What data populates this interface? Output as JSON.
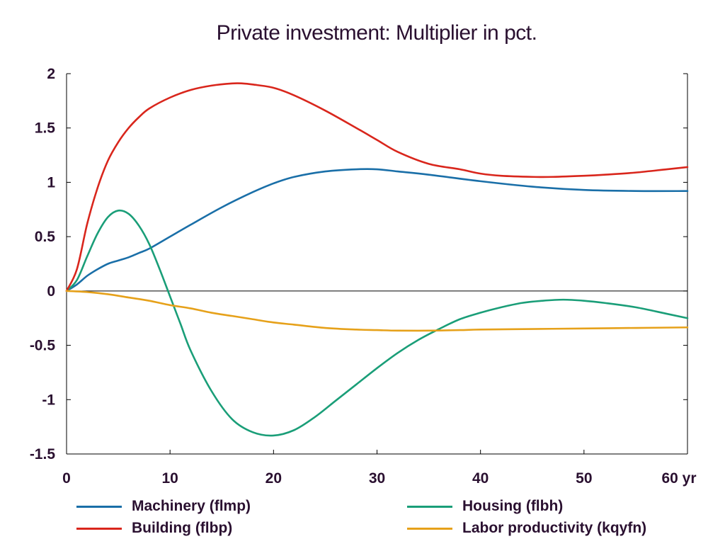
{
  "chart_data": {
    "type": "line",
    "title": "Private investment: Multiplier in pct.",
    "xlabel": "",
    "ylabel": "",
    "x_unit_label": "yr",
    "xlim": [
      0,
      60
    ],
    "ylim": [
      -1.5,
      2
    ],
    "x_ticks": [
      0,
      10,
      20,
      30,
      40,
      50,
      60
    ],
    "x_tick_labels": [
      "0",
      "10",
      "20",
      "30",
      "40",
      "50",
      "60 yr"
    ],
    "y_ticks": [
      -1.5,
      -1,
      -0.5,
      0,
      0.5,
      1,
      1.5,
      2
    ],
    "y_tick_labels": [
      "-1.5",
      "-1",
      "-0.5",
      "0",
      "0.5",
      "1",
      "1.5",
      "2"
    ],
    "grid": false,
    "zero_line": true,
    "legend_position": "bottom",
    "series": [
      {
        "name": "Machinery (flmp)",
        "color": "#1a6fa8",
        "x": [
          0,
          1,
          2,
          3,
          4,
          5,
          6,
          7,
          8,
          10,
          12,
          15,
          18,
          20,
          22,
          25,
          28,
          30,
          32,
          35,
          40,
          45,
          50,
          55,
          60
        ],
        "y": [
          0,
          0.06,
          0.14,
          0.2,
          0.25,
          0.28,
          0.31,
          0.35,
          0.39,
          0.5,
          0.61,
          0.77,
          0.91,
          0.99,
          1.05,
          1.1,
          1.12,
          1.12,
          1.1,
          1.07,
          1.01,
          0.96,
          0.93,
          0.92,
          0.92
        ]
      },
      {
        "name": "Housing (flbh)",
        "color": "#1a9e78",
        "x": [
          0,
          1,
          2,
          3,
          4,
          5,
          6,
          7,
          8,
          9,
          10,
          11,
          12,
          14,
          16,
          18,
          20,
          22,
          24,
          26,
          28,
          30,
          32,
          34,
          36,
          38,
          40,
          42,
          44,
          46,
          48,
          50,
          52,
          55,
          58,
          60
        ],
        "y": [
          0,
          0.1,
          0.32,
          0.53,
          0.68,
          0.74,
          0.71,
          0.6,
          0.43,
          0.2,
          -0.05,
          -0.3,
          -0.55,
          -0.92,
          -1.18,
          -1.3,
          -1.33,
          -1.28,
          -1.16,
          -1.01,
          -0.86,
          -0.71,
          -0.57,
          -0.45,
          -0.35,
          -0.26,
          -0.2,
          -0.15,
          -0.11,
          -0.09,
          -0.08,
          -0.09,
          -0.11,
          -0.15,
          -0.21,
          -0.25
        ]
      },
      {
        "name": "Building (flbp)",
        "color": "#d9261c",
        "x": [
          0,
          1,
          2,
          3,
          4,
          5,
          6,
          7,
          8,
          10,
          12,
          14,
          16,
          17,
          18,
          20,
          22,
          25,
          28,
          30,
          32,
          35,
          38,
          40,
          42,
          45,
          47,
          50,
          52,
          55,
          58,
          60
        ],
        "y": [
          0,
          0.2,
          0.62,
          0.95,
          1.2,
          1.37,
          1.5,
          1.6,
          1.68,
          1.78,
          1.85,
          1.89,
          1.91,
          1.91,
          1.9,
          1.87,
          1.8,
          1.66,
          1.5,
          1.39,
          1.28,
          1.17,
          1.12,
          1.08,
          1.06,
          1.05,
          1.05,
          1.06,
          1.07,
          1.09,
          1.12,
          1.14
        ]
      },
      {
        "name": "Labor productivity (kqyfn)",
        "color": "#e6a11a",
        "x": [
          0,
          2,
          4,
          6,
          8,
          10,
          12,
          14,
          16,
          18,
          20,
          22,
          25,
          28,
          30,
          32,
          35,
          38,
          40,
          45,
          50,
          55,
          60
        ],
        "y": [
          0,
          -0.01,
          -0.03,
          -0.06,
          -0.09,
          -0.13,
          -0.16,
          -0.2,
          -0.23,
          -0.26,
          -0.29,
          -0.31,
          -0.34,
          -0.355,
          -0.36,
          -0.365,
          -0.365,
          -0.36,
          -0.355,
          -0.35,
          -0.345,
          -0.34,
          -0.335
        ]
      }
    ]
  }
}
